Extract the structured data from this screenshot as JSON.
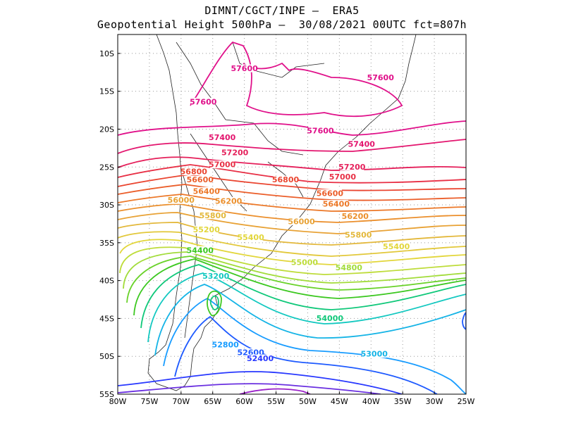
{
  "header": {
    "line1": "DIMNT/CGCT/INPE –  ERA5",
    "line2": "Geopotential Height 500hPa –  30/08/2021 00UTC fct=807h"
  },
  "axes": {
    "x_ticks": [
      "80W",
      "75W",
      "70W",
      "65W",
      "60W",
      "55W",
      "50W",
      "45W",
      "40W",
      "35W",
      "30W",
      "25W"
    ],
    "y_ticks": [
      "10S",
      "15S",
      "20S",
      "25S",
      "30S",
      "35S",
      "40S",
      "45S",
      "50S",
      "55S"
    ]
  },
  "contour_labels": [
    {
      "text": "57600",
      "color": "#e0108a",
      "lon": -60,
      "lat": -12.2
    },
    {
      "text": "57600",
      "color": "#e0108a",
      "lon": -38.5,
      "lat": -13.4
    },
    {
      "text": "57600",
      "color": "#e0108a",
      "lon": -66.5,
      "lat": -16.6
    },
    {
      "text": "57600",
      "color": "#e0108a",
      "lon": -48,
      "lat": -20.4
    },
    {
      "text": "57400",
      "color": "#e3156e",
      "lon": -63.5,
      "lat": -21.3
    },
    {
      "text": "57400",
      "color": "#e3156e",
      "lon": -41.5,
      "lat": -22.2
    },
    {
      "text": "57200",
      "color": "#e51f5a",
      "lon": -61.5,
      "lat": -23.3
    },
    {
      "text": "57200",
      "color": "#e51f5a",
      "lon": -43,
      "lat": -25.2
    },
    {
      "text": "57000",
      "color": "#e82f45",
      "lon": -63.5,
      "lat": -24.9
    },
    {
      "text": "57000",
      "color": "#e82f45",
      "lon": -44.5,
      "lat": -26.5
    },
    {
      "text": "56800",
      "color": "#ea4530",
      "lon": -68,
      "lat": -25.8
    },
    {
      "text": "56800",
      "color": "#ea4530",
      "lon": -53.5,
      "lat": -26.9
    },
    {
      "text": "56600",
      "color": "#eb5e2a",
      "lon": -67,
      "lat": -26.9
    },
    {
      "text": "56600",
      "color": "#eb5e2a",
      "lon": -46.5,
      "lat": -28.7
    },
    {
      "text": "56400",
      "color": "#ec7828",
      "lon": -66,
      "lat": -28.4
    },
    {
      "text": "56400",
      "color": "#ec7828",
      "lon": -45.5,
      "lat": -30.1
    },
    {
      "text": "56200",
      "color": "#eb8f2c",
      "lon": -62.5,
      "lat": -29.7
    },
    {
      "text": "56200",
      "color": "#eb8f2c",
      "lon": -42.5,
      "lat": -31.7
    },
    {
      "text": "56000",
      "color": "#e8a235",
      "lon": -70,
      "lat": -29.6
    },
    {
      "text": "56000",
      "color": "#e8a235",
      "lon": -51,
      "lat": -32.4
    },
    {
      "text": "55800",
      "color": "#e3b83b",
      "lon": -65,
      "lat": -31.6
    },
    {
      "text": "55800",
      "color": "#e3b83b",
      "lon": -42,
      "lat": -34.2
    },
    {
      "text": "55200",
      "color": "#e2d63a",
      "lon": -66,
      "lat": -33.5
    },
    {
      "text": "55400",
      "color": "#e2d63a",
      "lon": -59,
      "lat": -34.5
    },
    {
      "text": "55400",
      "color": "#e2d63a",
      "lon": -36,
      "lat": -35.7
    },
    {
      "text": "55000",
      "color": "#bedc3a",
      "lon": -50.5,
      "lat": -37.8
    },
    {
      "text": "54800",
      "color": "#a2dc3a",
      "lon": -43.5,
      "lat": -38.5
    },
    {
      "text": "54400",
      "color": "#3cc820",
      "lon": -67,
      "lat": -36.2
    },
    {
      "text": "53200",
      "color": "#12c8c0",
      "lon": -64.5,
      "lat": -39.6
    },
    {
      "text": "54000",
      "color": "#10c87a",
      "lon": -46.5,
      "lat": -45.2
    },
    {
      "text": "52800",
      "color": "#189cff",
      "lon": -63,
      "lat": -48.7
    },
    {
      "text": "53000",
      "color": "#15b4e6",
      "lon": -39.5,
      "lat": -49.9
    },
    {
      "text": "52600",
      "color": "#1e5aff",
      "lon": -59,
      "lat": -49.7
    },
    {
      "text": "52400",
      "color": "#2838ff",
      "lon": -57.5,
      "lat": -50.5
    }
  ]
}
